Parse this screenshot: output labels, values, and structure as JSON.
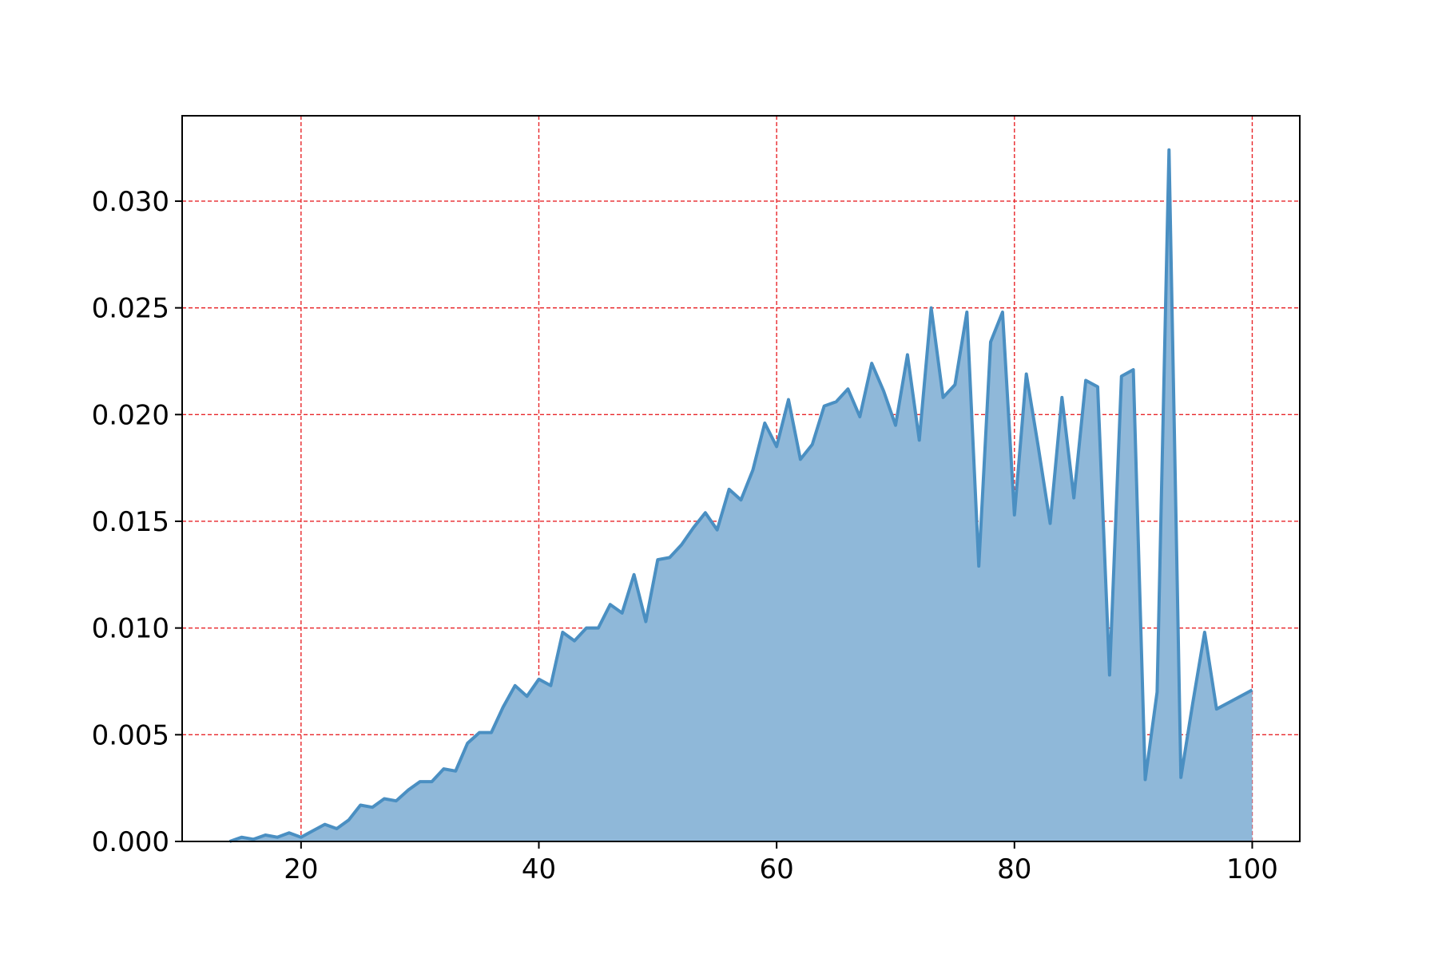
{
  "chart_data": {
    "type": "area",
    "title": "",
    "xlabel": "",
    "ylabel": "",
    "xlim": [
      10,
      104
    ],
    "ylim": [
      0,
      0.034
    ],
    "grid": true,
    "legend": "none",
    "colors": {
      "fill": "#8fb8d9",
      "line": "#4a8fc2",
      "grid": "#e8262a",
      "axis": "#000000"
    },
    "x_ticks": [
      20,
      40,
      60,
      80,
      100
    ],
    "x_tick_labels": [
      "20",
      "40",
      "60",
      "80",
      "100"
    ],
    "y_ticks": [
      0,
      0.005,
      0.01,
      0.015,
      0.02,
      0.025,
      0.03
    ],
    "y_tick_labels": [
      "0.000",
      "0.005",
      "0.010",
      "0.015",
      "0.020",
      "0.025",
      "0.030"
    ],
    "x": [
      14,
      15,
      16,
      17,
      18,
      19,
      20,
      21,
      22,
      23,
      24,
      25,
      26,
      27,
      28,
      29,
      30,
      31,
      32,
      33,
      34,
      35,
      36,
      37,
      38,
      39,
      40,
      41,
      42,
      43,
      44,
      45,
      46,
      47,
      48,
      49,
      50,
      51,
      52,
      53,
      54,
      55,
      56,
      57,
      58,
      59,
      60,
      61,
      62,
      63,
      64,
      65,
      66,
      67,
      68,
      69,
      70,
      71,
      72,
      73,
      74,
      75,
      76,
      77,
      78,
      79,
      80,
      81,
      82,
      83,
      84,
      85,
      86,
      87,
      88,
      89,
      90,
      91,
      92,
      93,
      94,
      95,
      96,
      97,
      98,
      99,
      100
    ],
    "values": [
      0.0,
      0.0002,
      0.0001,
      0.0003,
      0.0002,
      0.0004,
      0.0002,
      0.0005,
      0.0008,
      0.0006,
      0.001,
      0.0017,
      0.0016,
      0.002,
      0.0019,
      0.0024,
      0.0028,
      0.0028,
      0.0034,
      0.0033,
      0.0046,
      0.0051,
      0.0051,
      0.0063,
      0.0073,
      0.0068,
      0.0076,
      0.0073,
      0.0098,
      0.0094,
      0.01,
      0.01,
      0.0111,
      0.0107,
      0.0125,
      0.0103,
      0.0132,
      0.0133,
      0.0139,
      0.0147,
      0.0154,
      0.0146,
      0.0165,
      0.016,
      0.0174,
      0.0196,
      0.0185,
      0.0207,
      0.0179,
      0.0186,
      0.0204,
      0.0206,
      0.0212,
      0.0199,
      0.0224,
      0.0211,
      0.0195,
      0.0228,
      0.0188,
      0.025,
      0.0208,
      0.0214,
      0.0248,
      0.0129,
      0.0234,
      0.0248,
      0.0153,
      0.0219,
      0.0185,
      0.0149,
      0.0208,
      0.0161,
      0.0216,
      0.0213,
      0.0078,
      0.0218,
      0.0221,
      0.0029,
      0.007,
      0.0324,
      0.003,
      0.0065,
      0.0098,
      0.0062,
      0.0065,
      0.0068,
      0.0071
    ]
  }
}
